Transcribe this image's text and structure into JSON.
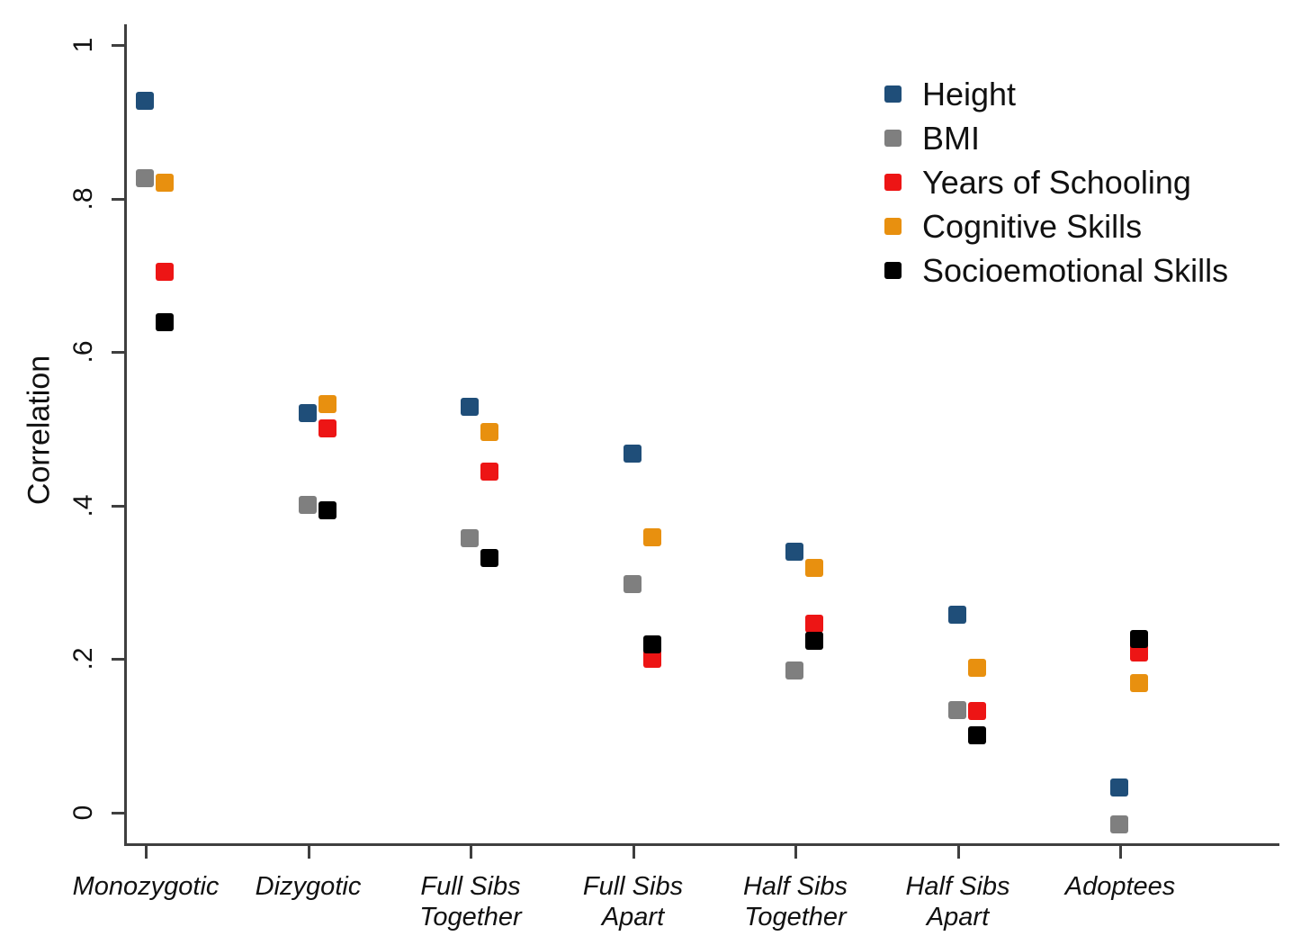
{
  "figure": {
    "background_color": "#ffffff",
    "axis_line_color": "#3f3f3f",
    "text_color": "#111111"
  },
  "chart_data": {
    "type": "scatter",
    "title": "",
    "xlabel": "",
    "ylabel": "Correlation",
    "ylim": [
      -0.05,
      1.03
    ],
    "grid": false,
    "legend_position": "top-right-inside",
    "marker_shape": "square",
    "ytick_labels": [
      "0",
      ".2",
      ".4",
      ".6",
      ".8",
      "1"
    ],
    "ytick_values": [
      0,
      0.2,
      0.4,
      0.6,
      0.8,
      1
    ],
    "categories": [
      "Monozygotic",
      "Dizygotic",
      "Full Sibs Together",
      "Full Sibs Apart",
      "Half Sibs Together",
      "Half Sibs Apart",
      "Adoptees"
    ],
    "category_label_lines": [
      [
        "Monozygotic"
      ],
      [
        "Dizygotic"
      ],
      [
        "Full Sibs",
        "Together"
      ],
      [
        "Full Sibs",
        "Apart"
      ],
      [
        "Half Sibs",
        "Together"
      ],
      [
        "Half Sibs",
        "Apart"
      ],
      [
        "Adoptees"
      ]
    ],
    "series": [
      {
        "name": "Height",
        "color": "#1f4e79",
        "values": [
          0.927,
          0.52,
          0.529,
          0.468,
          0.34,
          0.258,
          0.033
        ]
      },
      {
        "name": "BMI",
        "color": "#7f7f7f",
        "values": [
          0.827,
          0.401,
          0.358,
          0.298,
          0.185,
          0.134,
          -0.015
        ]
      },
      {
        "name": "Years of Schooling",
        "color": "#ed1515",
        "values": [
          0.705,
          0.501,
          0.444,
          0.2,
          0.246,
          0.132,
          0.209
        ]
      },
      {
        "name": "Cognitive Skills",
        "color": "#e8900f",
        "values": [
          0.821,
          0.532,
          0.496,
          0.359,
          0.319,
          0.189,
          0.169
        ]
      },
      {
        "name": "Socioemotional Skills",
        "color": "#000000",
        "values": [
          0.639,
          0.394,
          0.332,
          0.219,
          0.224,
          0.101,
          0.226
        ]
      }
    ]
  }
}
